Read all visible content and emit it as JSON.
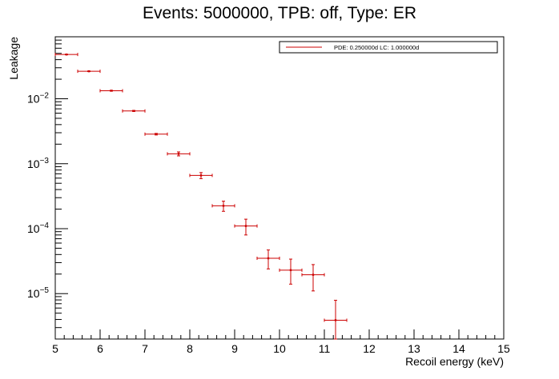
{
  "chart_data": {
    "type": "scatter",
    "title": "Events: 5000000, TPB: off, Type: ER",
    "xlabel": "Recoil energy (keV)",
    "ylabel": "Leakage",
    "xlim": [
      5,
      15
    ],
    "ylim": [
      2e-06,
      0.09
    ],
    "yscale": "log",
    "grid": false,
    "legend": "top-right",
    "x_ticks": [
      "5",
      "6",
      "7",
      "8",
      "9",
      "10",
      "11",
      "12",
      "13",
      "14",
      "15"
    ],
    "y_ticks": [
      {
        "value": 0.01,
        "base": "10",
        "exp": "−2"
      },
      {
        "value": 0.001,
        "base": "10",
        "exp": "−3"
      },
      {
        "value": 0.0001,
        "base": "10",
        "exp": "−4"
      },
      {
        "value": 1e-05,
        "base": "10",
        "exp": "−5"
      }
    ],
    "series": [
      {
        "name": "PDE: 0.250000d LC: 1.000000d",
        "color": "#cc0000",
        "points": [
          {
            "x": 5.25,
            "xerr": 0.25,
            "y": 0.048,
            "yerr_low": 0.0005,
            "yerr_high": 0.0005
          },
          {
            "x": 5.75,
            "xerr": 0.25,
            "y": 0.0265,
            "yerr_low": 0.0003,
            "yerr_high": 0.0003
          },
          {
            "x": 6.25,
            "xerr": 0.25,
            "y": 0.0133,
            "yerr_low": 0.0002,
            "yerr_high": 0.0002
          },
          {
            "x": 6.75,
            "xerr": 0.25,
            "y": 0.0065,
            "yerr_low": 0.00012,
            "yerr_high": 0.00012
          },
          {
            "x": 7.25,
            "xerr": 0.25,
            "y": 0.00285,
            "yerr_low": 8e-05,
            "yerr_high": 8e-05
          },
          {
            "x": 7.75,
            "xerr": 0.25,
            "y": 0.00142,
            "yerr_low": 0.0001,
            "yerr_high": 0.0001
          },
          {
            "x": 8.25,
            "xerr": 0.25,
            "y": 0.00066,
            "yerr_low": 7e-05,
            "yerr_high": 7e-05
          },
          {
            "x": 8.75,
            "xerr": 0.25,
            "y": 0.000225,
            "yerr_low": 4e-05,
            "yerr_high": 4e-05
          },
          {
            "x": 9.25,
            "xerr": 0.25,
            "y": 0.00011,
            "yerr_low": 3e-05,
            "yerr_high": 3e-05
          },
          {
            "x": 9.75,
            "xerr": 0.25,
            "y": 3.5e-05,
            "yerr_low": 1.1e-05,
            "yerr_high": 1.2e-05
          },
          {
            "x": 10.25,
            "xerr": 0.25,
            "y": 2.3e-05,
            "yerr_low": 9e-06,
            "yerr_high": 1.1e-05
          },
          {
            "x": 10.75,
            "xerr": 0.25,
            "y": 1.95e-05,
            "yerr_low": 8.5e-06,
            "yerr_high": 8.5e-06
          },
          {
            "x": 11.25,
            "xerr": 0.25,
            "y": 3.9e-06,
            "yerr_low": 2e-06,
            "yerr_high": 4e-06
          }
        ]
      }
    ]
  }
}
